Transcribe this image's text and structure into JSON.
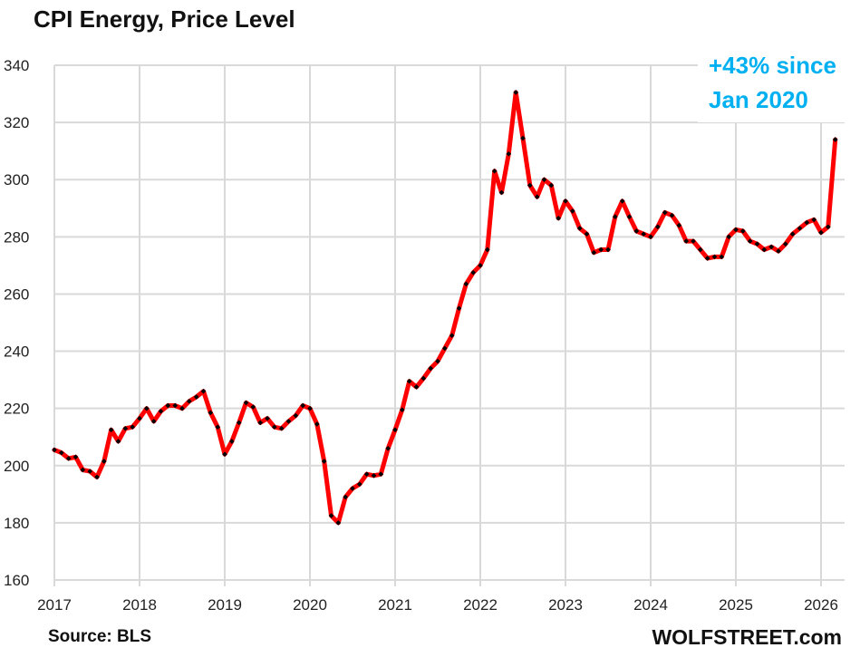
{
  "chart_data": {
    "type": "line",
    "title": "CPI Energy, Price Level",
    "xlabel": "",
    "ylabel": "",
    "ylim": [
      160,
      340
    ],
    "xlim": [
      2017,
      2026.25
    ],
    "yticks": [
      "160",
      "180",
      "200",
      "220",
      "240",
      "260",
      "280",
      "300",
      "320",
      "340"
    ],
    "xticks": [
      "2017",
      "2018",
      "2019",
      "2020",
      "2021",
      "2022",
      "2023",
      "2024",
      "2025",
      "2026"
    ],
    "grid": true,
    "legend": "none",
    "series": [
      {
        "name": "CPI Energy",
        "color": "#ff0000",
        "marker_color": "#000000",
        "start": "2017-01",
        "frequency": "monthly",
        "values": [
          205.5,
          204.5,
          202.5,
          203,
          198.5,
          198,
          196,
          201.5,
          212.5,
          208.5,
          213,
          213.5,
          216.5,
          220,
          215.5,
          219,
          221,
          221,
          220,
          222.5,
          224,
          226,
          218.5,
          213.5,
          204,
          208.5,
          215,
          222,
          220.5,
          215,
          216.5,
          213.5,
          213,
          215.5,
          217.5,
          221,
          220,
          214.5,
          201.5,
          182.5,
          180,
          189,
          192,
          193.5,
          197,
          196.5,
          197,
          206,
          212.5,
          219.5,
          229.5,
          227.5,
          230.5,
          234,
          236.5,
          241,
          245.5,
          255,
          263.5,
          267.5,
          270,
          275.5,
          303,
          295.5,
          309,
          330.5,
          314.5,
          298,
          294,
          300,
          298,
          286.5,
          292.5,
          289,
          283,
          281,
          274.5,
          275.5,
          275.5,
          287,
          292.5,
          287,
          282,
          281,
          280,
          283.5,
          288.5,
          287.5,
          284,
          278.5,
          278.5,
          275.5,
          272.5,
          273,
          273,
          280,
          282.5,
          282,
          278.5,
          277.5,
          275.5,
          276.5,
          275,
          277.5,
          281,
          283,
          285,
          286,
          281.5,
          283.5,
          314
        ]
      }
    ],
    "annotations": [
      "+43% since",
      "Jan 2020"
    ],
    "annotation_color": "#00b0f0",
    "source": "Source: BLS",
    "brand": "WOLFSTREET.com"
  }
}
